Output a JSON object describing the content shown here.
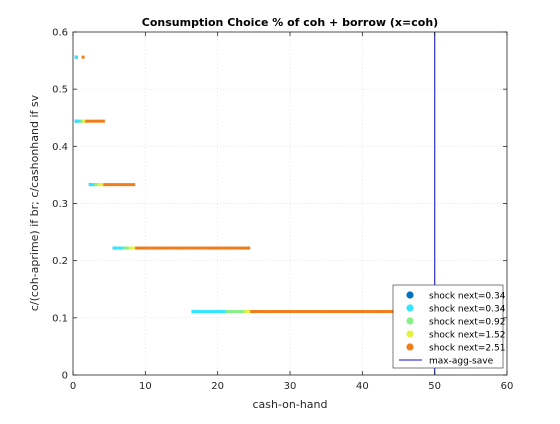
{
  "chart_data": {
    "type": "scatter",
    "title": "Consumption Choice % of coh + borrow (x=coh)",
    "xlabel": "cash-on-hand",
    "ylabel": "c/(coh-aprime) if br; c/cashonhand if sv",
    "xlim": [
      0,
      60
    ],
    "ylim": [
      0,
      0.6
    ],
    "xticks": [
      0,
      10,
      20,
      30,
      40,
      50,
      60
    ],
    "yticks": [
      0,
      0.1,
      0.2,
      0.3,
      0.4,
      0.5,
      0.6
    ],
    "xtick_labels": [
      "0",
      "10",
      "20",
      "30",
      "40",
      "50",
      "60"
    ],
    "ytick_labels": [
      "0",
      "0.1",
      "0.2",
      "0.3",
      "0.4",
      "0.5",
      "0.6"
    ],
    "grid": true,
    "legend_position": "bottom-right",
    "series": [
      {
        "name": "shock next=0.34",
        "color": "#0072bd",
        "segments": [
          {
            "y": 0.556,
            "x_start": 0.45,
            "x_end": 0.45
          },
          {
            "y": 0.444,
            "x_start": 0.45,
            "x_end": 0.45
          },
          {
            "y": 0.333,
            "x_start": 2.4,
            "x_end": 2.4
          },
          {
            "y": 0.222,
            "x_start": 5.7,
            "x_end": 5.7
          },
          {
            "y": 0.111,
            "x_start": 16.6,
            "x_end": 16.6
          }
        ]
      },
      {
        "name": "shock next=0.34",
        "color": "#33e6ff",
        "segments": [
          {
            "y": 0.556,
            "x_start": 0.45,
            "x_end": 0.45
          },
          {
            "y": 0.444,
            "x_start": 0.45,
            "x_end": 1.1
          },
          {
            "y": 0.333,
            "x_start": 2.4,
            "x_end": 3.0
          },
          {
            "y": 0.222,
            "x_start": 5.7,
            "x_end": 7.0
          },
          {
            "y": 0.111,
            "x_start": 16.6,
            "x_end": 21.0
          }
        ]
      },
      {
        "name": "shock next=0.92",
        "color": "#88f088",
        "segments": [
          {
            "y": 0.444,
            "x_start": 1.2,
            "x_end": 1.4
          },
          {
            "y": 0.333,
            "x_start": 3.1,
            "x_end": 3.5
          },
          {
            "y": 0.222,
            "x_start": 7.1,
            "x_end": 7.7
          },
          {
            "y": 0.111,
            "x_start": 21.3,
            "x_end": 23.6
          }
        ]
      },
      {
        "name": "shock next=1.52",
        "color": "#e6f040",
        "segments": [
          {
            "y": 0.444,
            "x_start": 1.5,
            "x_end": 1.7
          },
          {
            "y": 0.333,
            "x_start": 3.6,
            "x_end": 4.2
          },
          {
            "y": 0.222,
            "x_start": 7.9,
            "x_end": 8.6
          },
          {
            "y": 0.111,
            "x_start": 23.9,
            "x_end": 24.5
          }
        ]
      },
      {
        "name": "shock next=2.51",
        "color": "#ef7d1a",
        "segments": [
          {
            "y": 0.556,
            "x_start": 1.4,
            "x_end": 1.4
          },
          {
            "y": 0.444,
            "x_start": 1.9,
            "x_end": 4.2
          },
          {
            "y": 0.333,
            "x_start": 4.4,
            "x_end": 8.4
          },
          {
            "y": 0.222,
            "x_start": 8.8,
            "x_end": 24.3
          },
          {
            "y": 0.111,
            "x_start": 24.7,
            "x_end": 52.5
          }
        ]
      }
    ],
    "reference_line": {
      "name": "max-agg-save",
      "x": 50,
      "color": "#4040e0"
    }
  }
}
